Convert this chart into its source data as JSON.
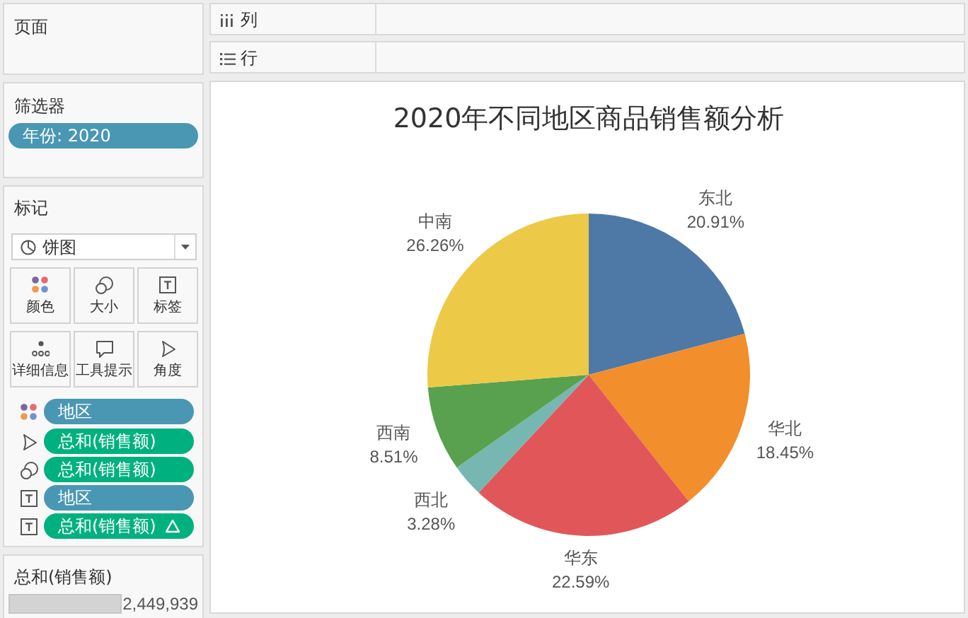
{
  "chart_data": [
    {
      "type": "other",
      "title": "页面"
    },
    {
      "type": "other",
      "title": "筛选器",
      "annotations": [
        "年份: 2020"
      ]
    },
    {
      "type": "other",
      "title": "标记",
      "annotations": [
        "饼图",
        "颜色",
        "大小",
        "标签",
        "详细信息",
        "工具提示",
        "角度",
        "地区",
        "总和(销售额)",
        "总和(销售额)",
        "地区",
        "总和(销售额)"
      ]
    },
    {
      "type": "other",
      "title": "总和(销售额)",
      "annotations": [
        "2,449,939"
      ]
    },
    {
      "type": "other",
      "annotations": [
        "列",
        "行"
      ]
    },
    {
      "type": "pie",
      "title": "2020年不同地区商品销售额分析",
      "categories": [
        "东北",
        "华北",
        "华东",
        "西北",
        "西南",
        "中南"
      ],
      "values": [
        20.91,
        18.45,
        22.59,
        3.28,
        8.51,
        26.26
      ],
      "colors": [
        "#4e79a7",
        "#f28e2b",
        "#e15759",
        "#76b7b2",
        "#59a14f",
        "#edc948"
      ],
      "value_labels": [
        "20.91%",
        "18.45%",
        "22.59%",
        "3.28%",
        "8.51%",
        "26.26%"
      ]
    }
  ]
}
